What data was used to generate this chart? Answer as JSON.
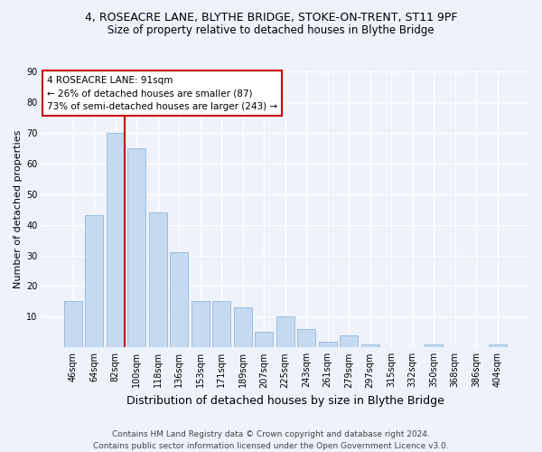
{
  "title": "4, ROSEACRE LANE, BLYTHE BRIDGE, STOKE-ON-TRENT, ST11 9PF",
  "subtitle": "Size of property relative to detached houses in Blythe Bridge",
  "xlabel": "Distribution of detached houses by size in Blythe Bridge",
  "ylabel": "Number of detached properties",
  "categories": [
    "46sqm",
    "64sqm",
    "82sqm",
    "100sqm",
    "118sqm",
    "136sqm",
    "153sqm",
    "171sqm",
    "189sqm",
    "207sqm",
    "225sqm",
    "243sqm",
    "261sqm",
    "279sqm",
    "297sqm",
    "315sqm",
    "332sqm",
    "350sqm",
    "368sqm",
    "386sqm",
    "404sqm"
  ],
  "values": [
    15,
    43,
    70,
    65,
    44,
    31,
    15,
    15,
    13,
    5,
    10,
    6,
    2,
    4,
    1,
    0,
    0,
    1,
    0,
    0,
    1
  ],
  "bar_color": "#c5d9f0",
  "bar_edge_color": "#94b8dc",
  "property_line_index": 2,
  "property_line_color": "#cc0000",
  "annotation_line1": "4 ROSEACRE LANE: 91sqm",
  "annotation_line2": "← 26% of detached houses are smaller (87)",
  "annotation_line3": "73% of semi-detached houses are larger (243) →",
  "annotation_box_color": "#ffffff",
  "annotation_box_edge": "#cc0000",
  "ylim": [
    0,
    90
  ],
  "yticks": [
    0,
    10,
    20,
    30,
    40,
    50,
    60,
    70,
    80,
    90
  ],
  "footer": "Contains HM Land Registry data © Crown copyright and database right 2024.\nContains public sector information licensed under the Open Government Licence v3.0.",
  "bg_color": "#eef2fb",
  "grid_color": "#ffffff",
  "title_fontsize": 9,
  "subtitle_fontsize": 8.5,
  "xlabel_fontsize": 9,
  "ylabel_fontsize": 8,
  "tick_fontsize": 7,
  "annotation_fontsize": 7.5,
  "footer_fontsize": 6.5
}
